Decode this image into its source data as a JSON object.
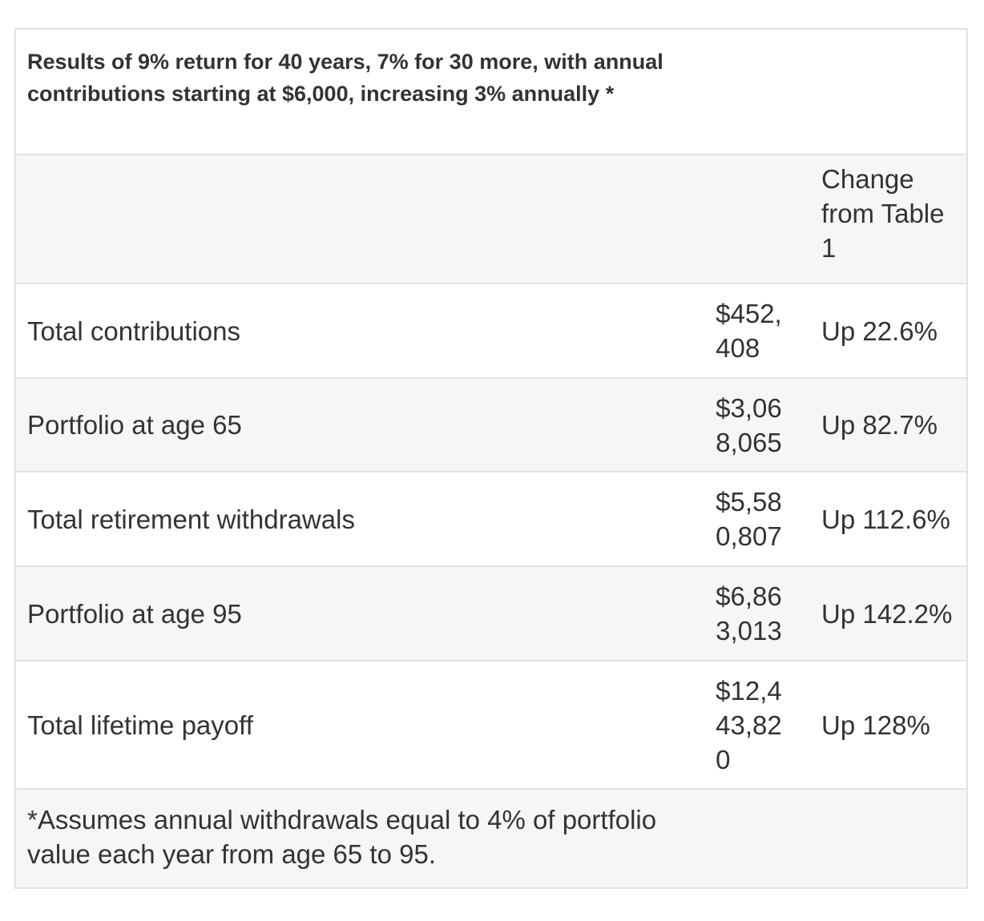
{
  "table": {
    "caption": "Results of 9% return for 40 years, 7% for 30 more, with annual contributions starting at $6,000, increasing 3% annually *",
    "header": {
      "label": "",
      "value": "",
      "change": "Change from Table 1"
    },
    "rows": [
      {
        "label": "Total contributions",
        "value": "$452,408",
        "change": "Up 22.6%"
      },
      {
        "label": "Portfolio at age 65",
        "value": "$3,068,065",
        "change": "Up 82.7%"
      },
      {
        "label": "Total retirement withdrawals",
        "value": "$5,580,807",
        "change": "Up 112.6%"
      },
      {
        "label": "Portfolio at age 95",
        "value": "$6,863,013",
        "change": "Up 142.2%"
      },
      {
        "label": "Total lifetime payoff",
        "value": "$12,443,820",
        "change": "Up 128%"
      }
    ],
    "footnote": "*Assumes annual withdrawals equal to 4% of portfolio value each year from age 65 to 95."
  }
}
